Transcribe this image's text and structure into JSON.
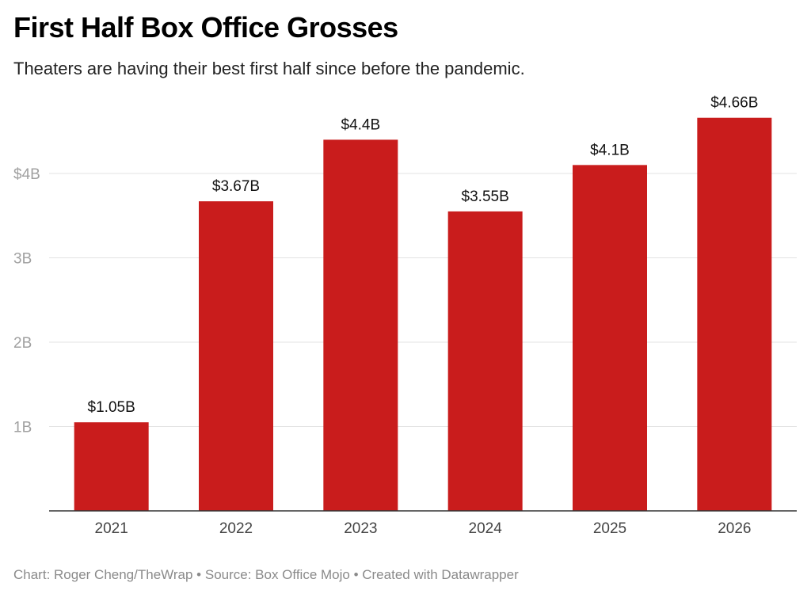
{
  "chart_data": {
    "type": "bar",
    "title": "First Half Box Office Grosses",
    "subtitle": "Theaters are having their best first half since before the pandemic.",
    "categories": [
      "2021",
      "2022",
      "2023",
      "2024",
      "2025",
      "2026"
    ],
    "values": [
      1.05,
      3.67,
      4.4,
      3.55,
      4.1,
      4.66
    ],
    "data_labels": [
      "$1.05B",
      "$3.67B",
      "$4.4B",
      "$3.55B",
      "$4.1B",
      "$4.66B"
    ],
    "y_ticks": [
      {
        "value": 1,
        "label": "1B"
      },
      {
        "value": 2,
        "label": "2B"
      },
      {
        "value": 3,
        "label": "3B"
      },
      {
        "value": 4,
        "label": "$4B"
      }
    ],
    "ylim": [
      0,
      4.66
    ],
    "xlabel": "",
    "ylabel": "",
    "grid": true,
    "legend": "none",
    "bar_color": "#c91c1c"
  },
  "footer": "Chart: Roger Cheng/TheWrap • Source: Box Office Mojo • Created with Datawrapper"
}
